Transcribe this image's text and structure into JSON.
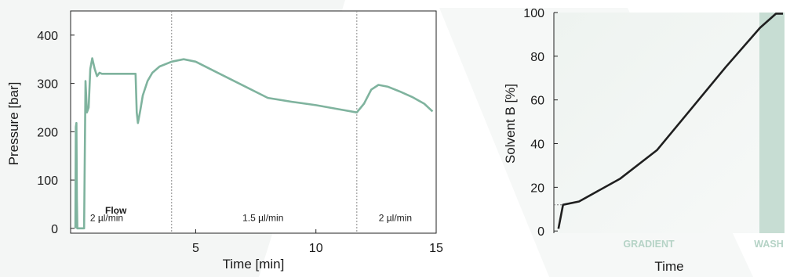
{
  "colors": {
    "pressure_line": "#7fb39e",
    "gradient_line": "#1f1f1f",
    "region_label": "#b5d3c6",
    "wash_fill": "#c7ddd3",
    "plot_bg": "#f3f6f4"
  },
  "chart_data": [
    {
      "type": "line",
      "xlabel": "Time [min]",
      "ylabel": "Pressure [bar]",
      "xlim": [
        -0.2,
        15
      ],
      "ylim": [
        -10,
        450
      ],
      "xticks": [
        5,
        10,
        15
      ],
      "yticks": [
        0,
        100,
        200,
        300,
        400
      ],
      "grid": false,
      "series": [
        {
          "x": [
            0,
            0.02,
            0.04,
            0.06,
            0.08,
            0.12,
            0.2,
            0.28,
            0.36,
            0.42,
            0.48,
            0.55,
            0.62,
            0.7,
            0.8,
            0.9,
            1.0,
            1.1,
            1.2,
            1.5,
            2.0,
            2.5,
            2.55,
            2.6,
            2.7,
            2.8,
            3.0,
            3.2,
            3.5,
            4.0,
            4.5,
            5.0,
            6.0,
            7.0,
            8.0,
            9.0,
            10.0,
            11.0,
            11.7,
            12.0,
            12.3,
            12.6,
            13.0,
            13.5,
            14.0,
            14.5,
            14.85
          ],
          "y": [
            0,
            210,
            218,
            60,
            0,
            0,
            0,
            0,
            0,
            305,
            240,
            250,
            330,
            352,
            330,
            315,
            322,
            320,
            320,
            320,
            320,
            320,
            240,
            218,
            245,
            275,
            305,
            322,
            335,
            345,
            350,
            345,
            320,
            295,
            270,
            262,
            255,
            246,
            240,
            258,
            287,
            297,
            293,
            283,
            272,
            258,
            242
          ]
        }
      ],
      "annotations": [
        {
          "text": "2 µl/min",
          "x": 1.3,
          "y": 15
        },
        {
          "text": "1.5 µl/min",
          "x": 7.8,
          "y": 15
        },
        {
          "text": "2 µl/min",
          "x": 13.3,
          "y": 15
        }
      ],
      "flow_label": "Flow",
      "vlines": [
        4.0,
        11.7
      ]
    },
    {
      "type": "line",
      "xlabel": "Time",
      "ylabel": "Solvent B [%]",
      "ylim": [
        -1,
        100
      ],
      "yticks": [
        0,
        20,
        40,
        60,
        80,
        100
      ],
      "grid": false,
      "series": [
        {
          "x": [
            0.02,
            0.04,
            0.11,
            0.29,
            0.45,
            0.6,
            0.75,
            0.9,
            0.97,
            1.0
          ],
          "y": [
            1,
            12,
            13.5,
            24,
            37,
            56,
            75,
            93,
            99.5,
            99.5
          ]
        }
      ],
      "hline": 12,
      "regions": [
        {
          "label": "GRADIENT",
          "x_start": 0,
          "x_end": 0.89
        },
        {
          "label": "WASH",
          "x_start": 0.89,
          "x_end": 1.04
        }
      ]
    }
  ]
}
